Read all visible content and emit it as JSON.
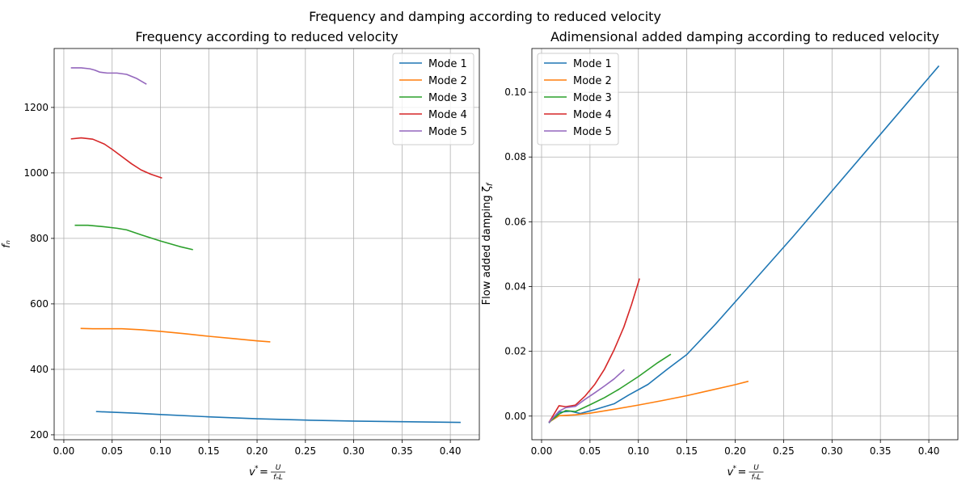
{
  "figure": {
    "suptitle": "Frequency and damping according to reduced velocity"
  },
  "chart_data": [
    {
      "type": "line",
      "title": "Frequency according to reduced velocity",
      "xlabel": "v* = U / (f_n L)",
      "ylabel": "f_n",
      "xlim": [
        -0.01,
        0.43
      ],
      "ylim": [
        185,
        1380
      ],
      "xticks": [
        0.0,
        0.05,
        0.1,
        0.15,
        0.2,
        0.25,
        0.3,
        0.35,
        0.4
      ],
      "xtick_labels": [
        "0.00",
        "0.05",
        "0.10",
        "0.15",
        "0.20",
        "0.25",
        "0.30",
        "0.35",
        "0.40"
      ],
      "yticks": [
        200,
        400,
        600,
        800,
        1000,
        1200
      ],
      "ytick_labels": [
        "200",
        "400",
        "600",
        "800",
        "1000",
        "1200"
      ],
      "grid": true,
      "legend_position": "upper-right",
      "series": [
        {
          "name": "Mode 1",
          "color": "#1f77b4",
          "x": [
            0.034,
            0.05,
            0.075,
            0.1,
            0.15,
            0.2,
            0.25,
            0.3,
            0.35,
            0.41
          ],
          "y": [
            271,
            269,
            266,
            262,
            255,
            249,
            245,
            242,
            240,
            238
          ]
        },
        {
          "name": "Mode 2",
          "color": "#ff7f0e",
          "x": [
            0.018,
            0.03,
            0.045,
            0.06,
            0.08,
            0.1,
            0.125,
            0.15,
            0.175,
            0.2,
            0.213
          ],
          "y": [
            525,
            524,
            524,
            524,
            521,
            516,
            509,
            501,
            494,
            487,
            484
          ]
        },
        {
          "name": "Mode 3",
          "color": "#2ca02c",
          "x": [
            0.012,
            0.025,
            0.04,
            0.055,
            0.065,
            0.08,
            0.1,
            0.12,
            0.133
          ],
          "y": [
            840,
            840,
            836,
            831,
            826,
            811,
            792,
            775,
            766
          ]
        },
        {
          "name": "Mode 4",
          "color": "#d62728",
          "x": [
            0.008,
            0.018,
            0.03,
            0.042,
            0.05,
            0.06,
            0.07,
            0.08,
            0.09,
            0.101
          ],
          "y": [
            1104,
            1107,
            1103,
            1088,
            1072,
            1050,
            1028,
            1009,
            996,
            985
          ]
        },
        {
          "name": "Mode 5",
          "color": "#9467bd",
          "x": [
            0.008,
            0.018,
            0.027,
            0.032,
            0.037,
            0.045,
            0.055,
            0.065,
            0.075,
            0.085
          ],
          "y": [
            1321,
            1321,
            1318,
            1314,
            1308,
            1305,
            1305,
            1301,
            1289,
            1272
          ]
        }
      ]
    },
    {
      "type": "line",
      "title": "Adimensional added damping according to reduced velocity",
      "xlabel": "v* = U / (f_n L)",
      "ylabel": "Flow added damping ζ_f",
      "xlim": [
        -0.01,
        0.43
      ],
      "ylim": [
        -0.0073,
        0.1135
      ],
      "xticks": [
        0.0,
        0.05,
        0.1,
        0.15,
        0.2,
        0.25,
        0.3,
        0.35,
        0.4
      ],
      "xtick_labels": [
        "0.00",
        "0.05",
        "0.10",
        "0.15",
        "0.20",
        "0.25",
        "0.30",
        "0.35",
        "0.40"
      ],
      "yticks": [
        0.0,
        0.02,
        0.04,
        0.06,
        0.08,
        0.1
      ],
      "ytick_labels": [
        "0.00",
        "0.02",
        "0.04",
        "0.06",
        "0.08",
        "0.10"
      ],
      "grid": true,
      "legend_position": "upper-left",
      "series": [
        {
          "name": "Mode 1",
          "color": "#1f77b4",
          "x": [
            0.008,
            0.018,
            0.03,
            0.04,
            0.055,
            0.075,
            0.09,
            0.11,
            0.13,
            0.15,
            0.18,
            0.22,
            0.26,
            0.3,
            0.35,
            0.41
          ],
          "y": [
            -0.002,
            0.0012,
            0.0015,
            0.0008,
            0.002,
            0.0038,
            0.0065,
            0.0098,
            0.0145,
            0.019,
            0.0285,
            0.042,
            0.0555,
            0.0695,
            0.087,
            0.108
          ]
        },
        {
          "name": "Mode 2",
          "color": "#ff7f0e",
          "x": [
            0.008,
            0.018,
            0.035,
            0.05,
            0.075,
            0.1,
            0.125,
            0.15,
            0.175,
            0.2,
            0.213
          ],
          "y": [
            -0.0018,
            0.0001,
            0.0004,
            0.0009,
            0.0021,
            0.0034,
            0.0048,
            0.0063,
            0.008,
            0.0097,
            0.0107
          ]
        },
        {
          "name": "Mode 3",
          "color": "#2ca02c",
          "x": [
            0.008,
            0.018,
            0.025,
            0.035,
            0.05,
            0.065,
            0.08,
            0.1,
            0.12,
            0.133
          ],
          "y": [
            -0.0018,
            0.0006,
            0.0017,
            0.0014,
            0.0035,
            0.0057,
            0.0083,
            0.0122,
            0.0165,
            0.019
          ]
        },
        {
          "name": "Mode 4",
          "color": "#d62728",
          "x": [
            0.008,
            0.018,
            0.025,
            0.035,
            0.045,
            0.055,
            0.065,
            0.075,
            0.085,
            0.093,
            0.101
          ],
          "y": [
            -0.0018,
            0.0032,
            0.0029,
            0.0034,
            0.0062,
            0.0098,
            0.0145,
            0.0205,
            0.0275,
            0.0345,
            0.0423
          ]
        },
        {
          "name": "Mode 5",
          "color": "#9467bd",
          "x": [
            0.008,
            0.018,
            0.025,
            0.035,
            0.045,
            0.055,
            0.065,
            0.075,
            0.085
          ],
          "y": [
            -0.0018,
            0.0015,
            0.0026,
            0.003,
            0.0052,
            0.0072,
            0.0093,
            0.0115,
            0.0142
          ]
        }
      ]
    }
  ]
}
